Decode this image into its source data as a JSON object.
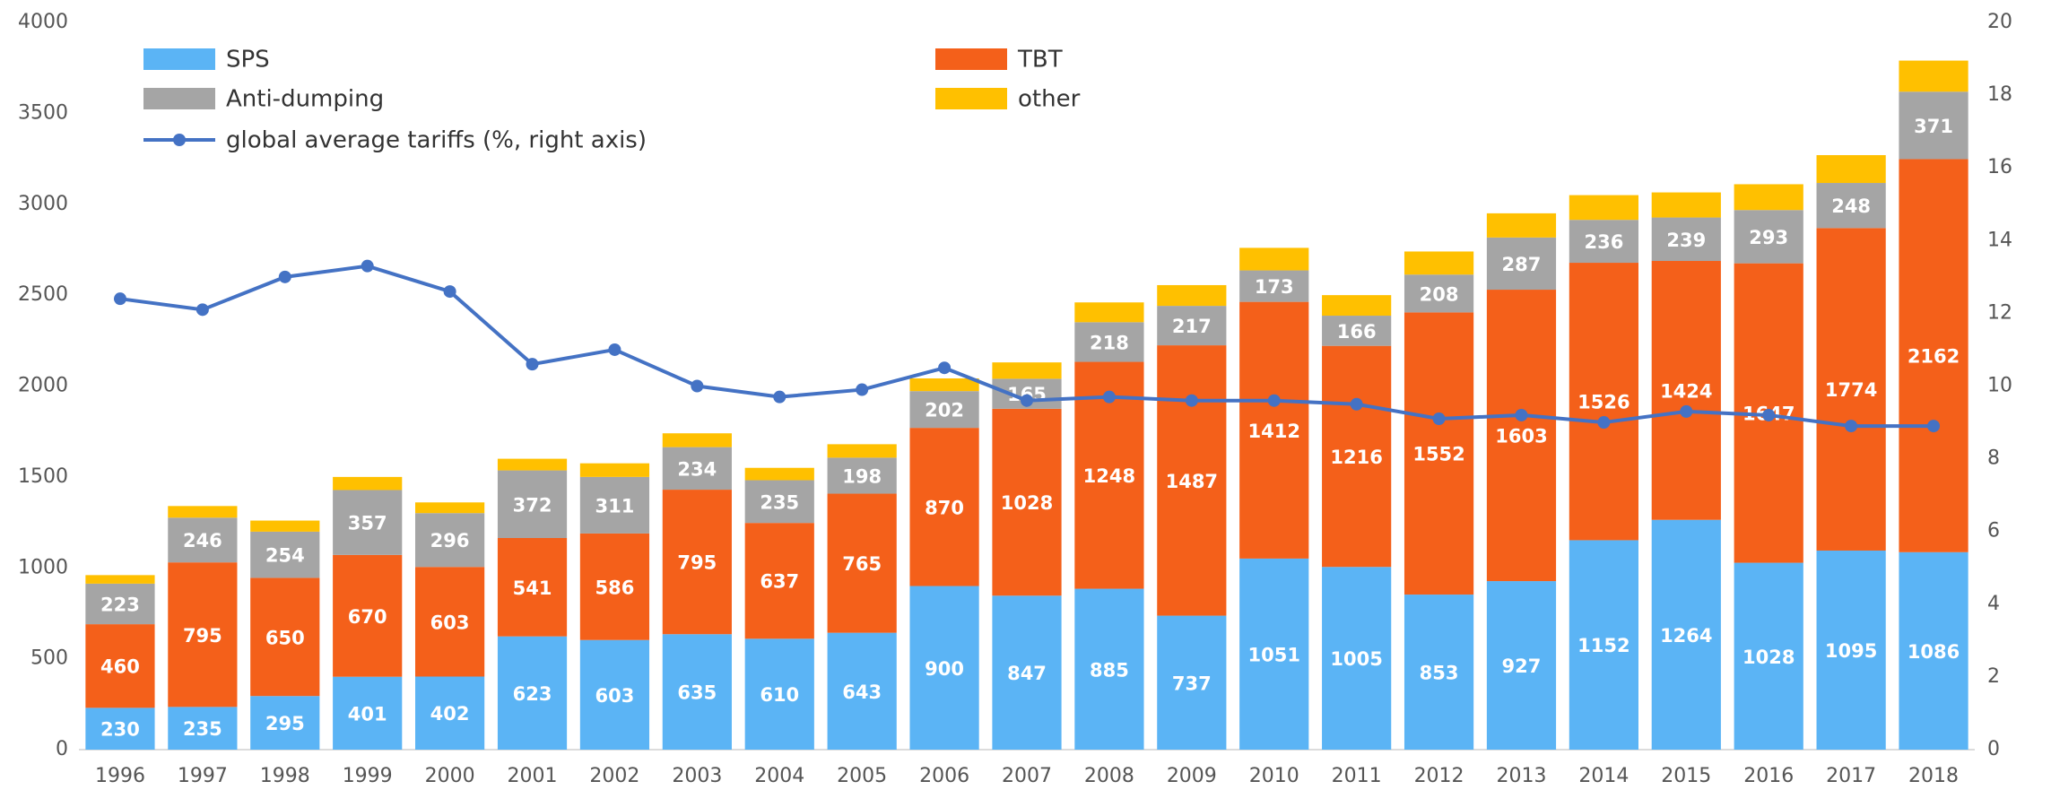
{
  "chart_data": {
    "type": "bar",
    "stacked": true,
    "categories": [
      "1996",
      "1997",
      "1998",
      "1999",
      "2000",
      "2001",
      "2002",
      "2003",
      "2004",
      "2005",
      "2006",
      "2007",
      "2008",
      "2009",
      "2010",
      "2011",
      "2012",
      "2013",
      "2014",
      "2015",
      "2016",
      "2017",
      "2018"
    ],
    "series": [
      {
        "name": "SPS",
        "color": "#5bb4f5",
        "values": [
          230,
          235,
          295,
          401,
          402,
          623,
          603,
          635,
          610,
          643,
          900,
          847,
          885,
          737,
          1051,
          1005,
          853,
          927,
          1152,
          1264,
          1028,
          1095,
          1086
        ]
      },
      {
        "name": "TBT",
        "color": "#f4601a",
        "values": [
          460,
          795,
          650,
          670,
          603,
          541,
          586,
          795,
          637,
          765,
          870,
          1028,
          1248,
          1487,
          1412,
          1216,
          1552,
          1603,
          1526,
          1424,
          1647,
          1774,
          2162
        ]
      },
      {
        "name": "Anti-dumping",
        "color": "#a5a5a5",
        "values": [
          223,
          246,
          254,
          357,
          296,
          372,
          311,
          234,
          235,
          198,
          202,
          165,
          218,
          217,
          173,
          166,
          208,
          287,
          236,
          239,
          293,
          248,
          371
        ]
      },
      {
        "name": "other",
        "color": "#ffc000",
        "values": [
          47,
          64,
          61,
          72,
          59,
          64,
          75,
          76,
          68,
          74,
          70,
          90,
          109,
          114,
          124,
          113,
          127,
          133,
          136,
          138,
          142,
          153,
          171
        ]
      },
      {
        "name": "global average tariffs (%, right axis)",
        "color": "#4472c4",
        "axis": "y2",
        "type": "line",
        "values": [
          12.4,
          12.1,
          13.0,
          13.3,
          12.6,
          10.6,
          11.0,
          10.0,
          9.7,
          9.9,
          10.5,
          9.6,
          9.7,
          9.6,
          9.6,
          9.5,
          9.1,
          9.2,
          9.0,
          9.3,
          9.2,
          8.9,
          8.9
        ]
      }
    ],
    "ylim": [
      0,
      4000
    ],
    "yticks": [
      0,
      500,
      1000,
      1500,
      2000,
      2500,
      3000,
      3500,
      4000
    ],
    "y2lim": [
      0,
      20
    ],
    "y2ticks": [
      0,
      2,
      4,
      6,
      8,
      10,
      12,
      14,
      16,
      18,
      20
    ],
    "grid": false,
    "legend": "top-left"
  }
}
